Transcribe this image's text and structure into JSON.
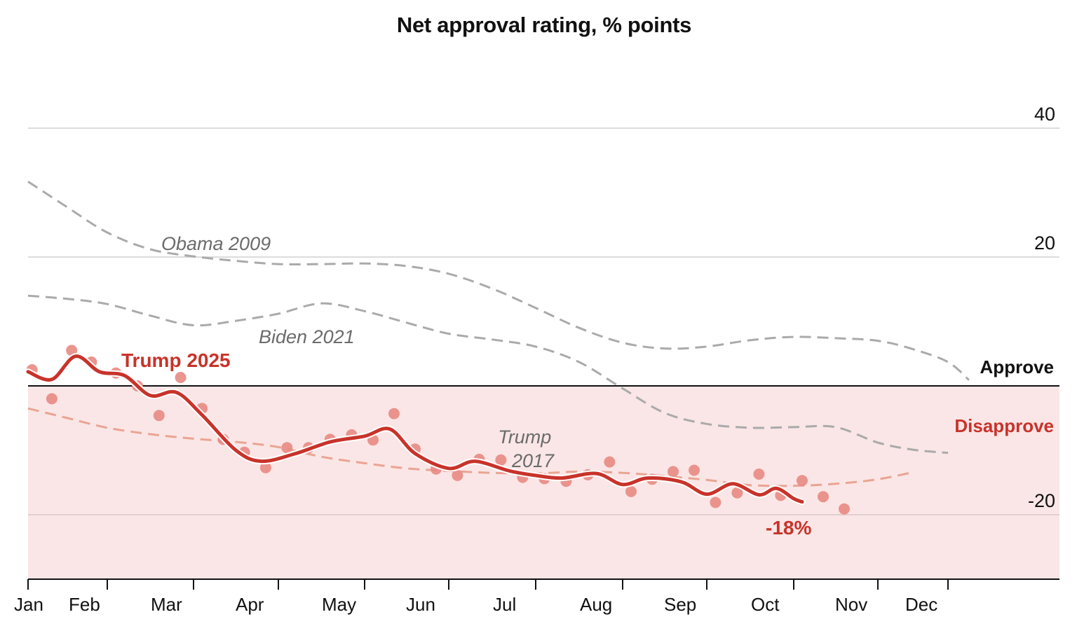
{
  "chart_data": {
    "type": "line",
    "title": "Net approval rating, % points",
    "xlabel": "",
    "ylabel": "",
    "ylim": [
      -30,
      40
    ],
    "xlim": [
      1,
      13
    ],
    "yticks": [
      40,
      20,
      -20
    ],
    "grid": true,
    "months": [
      "Jan",
      "Feb",
      "Mar",
      "Apr",
      "May",
      "Jun",
      "Jul",
      "Aug",
      "Sep",
      "Oct",
      "Nov",
      "Dec"
    ],
    "zones": {
      "approve": "Approve",
      "disapprove": "Disapprove"
    },
    "series": [
      {
        "name": "Obama 2009",
        "style": "dashed",
        "color": "#aaaaaa",
        "points": [
          [
            1.0,
            31.7
          ],
          [
            1.5,
            27.7
          ],
          [
            2.0,
            23.8
          ],
          [
            2.5,
            21.2
          ],
          [
            3.0,
            20.1
          ],
          [
            3.5,
            19.4
          ],
          [
            4.0,
            18.9
          ],
          [
            4.5,
            18.9
          ],
          [
            5.0,
            19.0
          ],
          [
            5.5,
            18.6
          ],
          [
            6.0,
            17.4
          ],
          [
            6.5,
            15.1
          ],
          [
            7.0,
            12.1
          ],
          [
            7.5,
            9.0
          ],
          [
            8.0,
            6.7
          ],
          [
            8.5,
            5.8
          ],
          [
            9.0,
            6.1
          ],
          [
            9.5,
            7.1
          ],
          [
            10.0,
            7.6
          ],
          [
            10.5,
            7.4
          ],
          [
            11.0,
            7.0
          ],
          [
            11.5,
            5.7
          ],
          [
            12.0,
            3.7
          ],
          [
            12.3,
            0.9
          ]
        ]
      },
      {
        "name": "Biden 2021",
        "style": "dashed",
        "color": "#aaaaaa",
        "points": [
          [
            1.0,
            14.0
          ],
          [
            1.5,
            13.5
          ],
          [
            2.0,
            12.7
          ],
          [
            2.5,
            10.9
          ],
          [
            3.0,
            9.4
          ],
          [
            3.5,
            10.1
          ],
          [
            4.0,
            11.2
          ],
          [
            4.5,
            12.8
          ],
          [
            5.0,
            11.6
          ],
          [
            5.5,
            9.8
          ],
          [
            6.0,
            8.1
          ],
          [
            6.5,
            7.2
          ],
          [
            7.0,
            6.1
          ],
          [
            7.5,
            3.7
          ],
          [
            8.0,
            -0.4
          ],
          [
            8.5,
            -4.2
          ],
          [
            9.0,
            -5.9
          ],
          [
            9.5,
            -6.5
          ],
          [
            10.0,
            -6.4
          ],
          [
            10.5,
            -6.4
          ],
          [
            11.0,
            -8.8
          ],
          [
            11.5,
            -9.9
          ],
          [
            12.0,
            -10.4
          ]
        ]
      },
      {
        "name": "Trump 2017",
        "style": "dashed",
        "color": "#eaa493",
        "points": [
          [
            1.0,
            -3.5
          ],
          [
            1.5,
            -5.0
          ],
          [
            2.0,
            -6.5
          ],
          [
            2.5,
            -7.5
          ],
          [
            3.0,
            -8.2
          ],
          [
            3.5,
            -8.7
          ],
          [
            4.0,
            -9.5
          ],
          [
            4.5,
            -11.0
          ],
          [
            5.0,
            -12.0
          ],
          [
            5.5,
            -12.8
          ],
          [
            6.0,
            -13.2
          ],
          [
            6.5,
            -13.5
          ],
          [
            7.0,
            -13.6
          ],
          [
            7.5,
            -13.3
          ],
          [
            8.0,
            -13.5
          ],
          [
            8.5,
            -14.0
          ],
          [
            9.0,
            -14.6
          ],
          [
            9.5,
            -15.4
          ],
          [
            10.0,
            -15.5
          ],
          [
            10.5,
            -15.2
          ],
          [
            11.0,
            -14.5
          ],
          [
            11.5,
            -13.4
          ]
        ]
      },
      {
        "name": "Trump 2025",
        "style": "solid",
        "color": "#c8332a",
        "final_label": "-18%",
        "points": [
          [
            1.0,
            2.2
          ],
          [
            1.3,
            1.0
          ],
          [
            1.6,
            4.6
          ],
          [
            1.9,
            2.2
          ],
          [
            2.2,
            1.6
          ],
          [
            2.5,
            -1.5
          ],
          [
            2.8,
            -1.0
          ],
          [
            3.1,
            -4.5
          ],
          [
            3.5,
            -10.0
          ],
          [
            3.8,
            -11.7
          ],
          [
            4.2,
            -10.5
          ],
          [
            4.6,
            -8.7
          ],
          [
            5.0,
            -7.8
          ],
          [
            5.3,
            -6.7
          ],
          [
            5.6,
            -10.5
          ],
          [
            6.0,
            -12.8
          ],
          [
            6.3,
            -11.7
          ],
          [
            6.7,
            -13.2
          ],
          [
            7.0,
            -13.9
          ],
          [
            7.3,
            -14.3
          ],
          [
            7.7,
            -13.6
          ],
          [
            8.0,
            -15.3
          ],
          [
            8.3,
            -14.3
          ],
          [
            8.7,
            -14.9
          ],
          [
            9.0,
            -16.8
          ],
          [
            9.3,
            -15.2
          ],
          [
            9.6,
            -16.9
          ],
          [
            9.8,
            -15.9
          ],
          [
            10.0,
            -17.5
          ],
          [
            10.1,
            -18.0
          ]
        ]
      }
    ],
    "scatter": {
      "name": "Trump 2025 polls",
      "color": "#e88a83",
      "points": [
        [
          1.05,
          2.5
        ],
        [
          1.3,
          -2.0
        ],
        [
          1.55,
          5.5
        ],
        [
          1.8,
          3.7
        ],
        [
          2.1,
          2.0
        ],
        [
          2.35,
          0.0
        ],
        [
          2.6,
          -4.6
        ],
        [
          2.85,
          1.3
        ],
        [
          3.1,
          -3.5
        ],
        [
          3.35,
          -8.3
        ],
        [
          3.6,
          -10.3
        ],
        [
          3.85,
          -12.7
        ],
        [
          4.1,
          -9.6
        ],
        [
          4.35,
          -9.6
        ],
        [
          4.6,
          -8.3
        ],
        [
          4.85,
          -7.6
        ],
        [
          5.1,
          -8.4
        ],
        [
          5.35,
          -4.3
        ],
        [
          5.6,
          -9.8
        ],
        [
          5.85,
          -12.9
        ],
        [
          6.1,
          -13.9
        ],
        [
          6.35,
          -11.4
        ],
        [
          6.6,
          -11.5
        ],
        [
          6.85,
          -14.2
        ],
        [
          7.1,
          -14.4
        ],
        [
          7.35,
          -14.8
        ],
        [
          7.6,
          -13.8
        ],
        [
          7.85,
          -11.8
        ],
        [
          8.1,
          -16.4
        ],
        [
          8.35,
          -14.5
        ],
        [
          8.6,
          -13.3
        ],
        [
          8.85,
          -13.1
        ],
        [
          9.1,
          -18.1
        ],
        [
          9.35,
          -16.6
        ],
        [
          9.6,
          -13.7
        ],
        [
          9.85,
          -17.0
        ],
        [
          10.1,
          -14.7
        ],
        [
          10.35,
          -17.2
        ],
        [
          10.6,
          -19.1
        ]
      ]
    }
  }
}
